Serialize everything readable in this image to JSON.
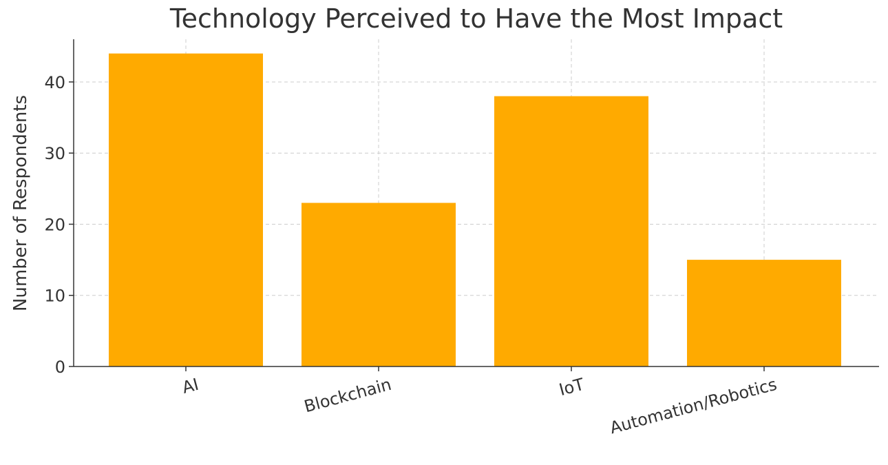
{
  "chart_data": {
    "type": "bar",
    "title": "Technology Perceived to Have the Most Impact",
    "xlabel": "",
    "ylabel": "Number of Respondents",
    "categories": [
      "AI",
      "Blockchain",
      "IoT",
      "Automation/Robotics"
    ],
    "values": [
      44,
      23,
      38,
      15
    ],
    "ylim": [
      0,
      46
    ],
    "yticks": [
      0,
      10,
      20,
      30,
      40
    ],
    "grid": true,
    "bar_color": "#FFAA00"
  }
}
